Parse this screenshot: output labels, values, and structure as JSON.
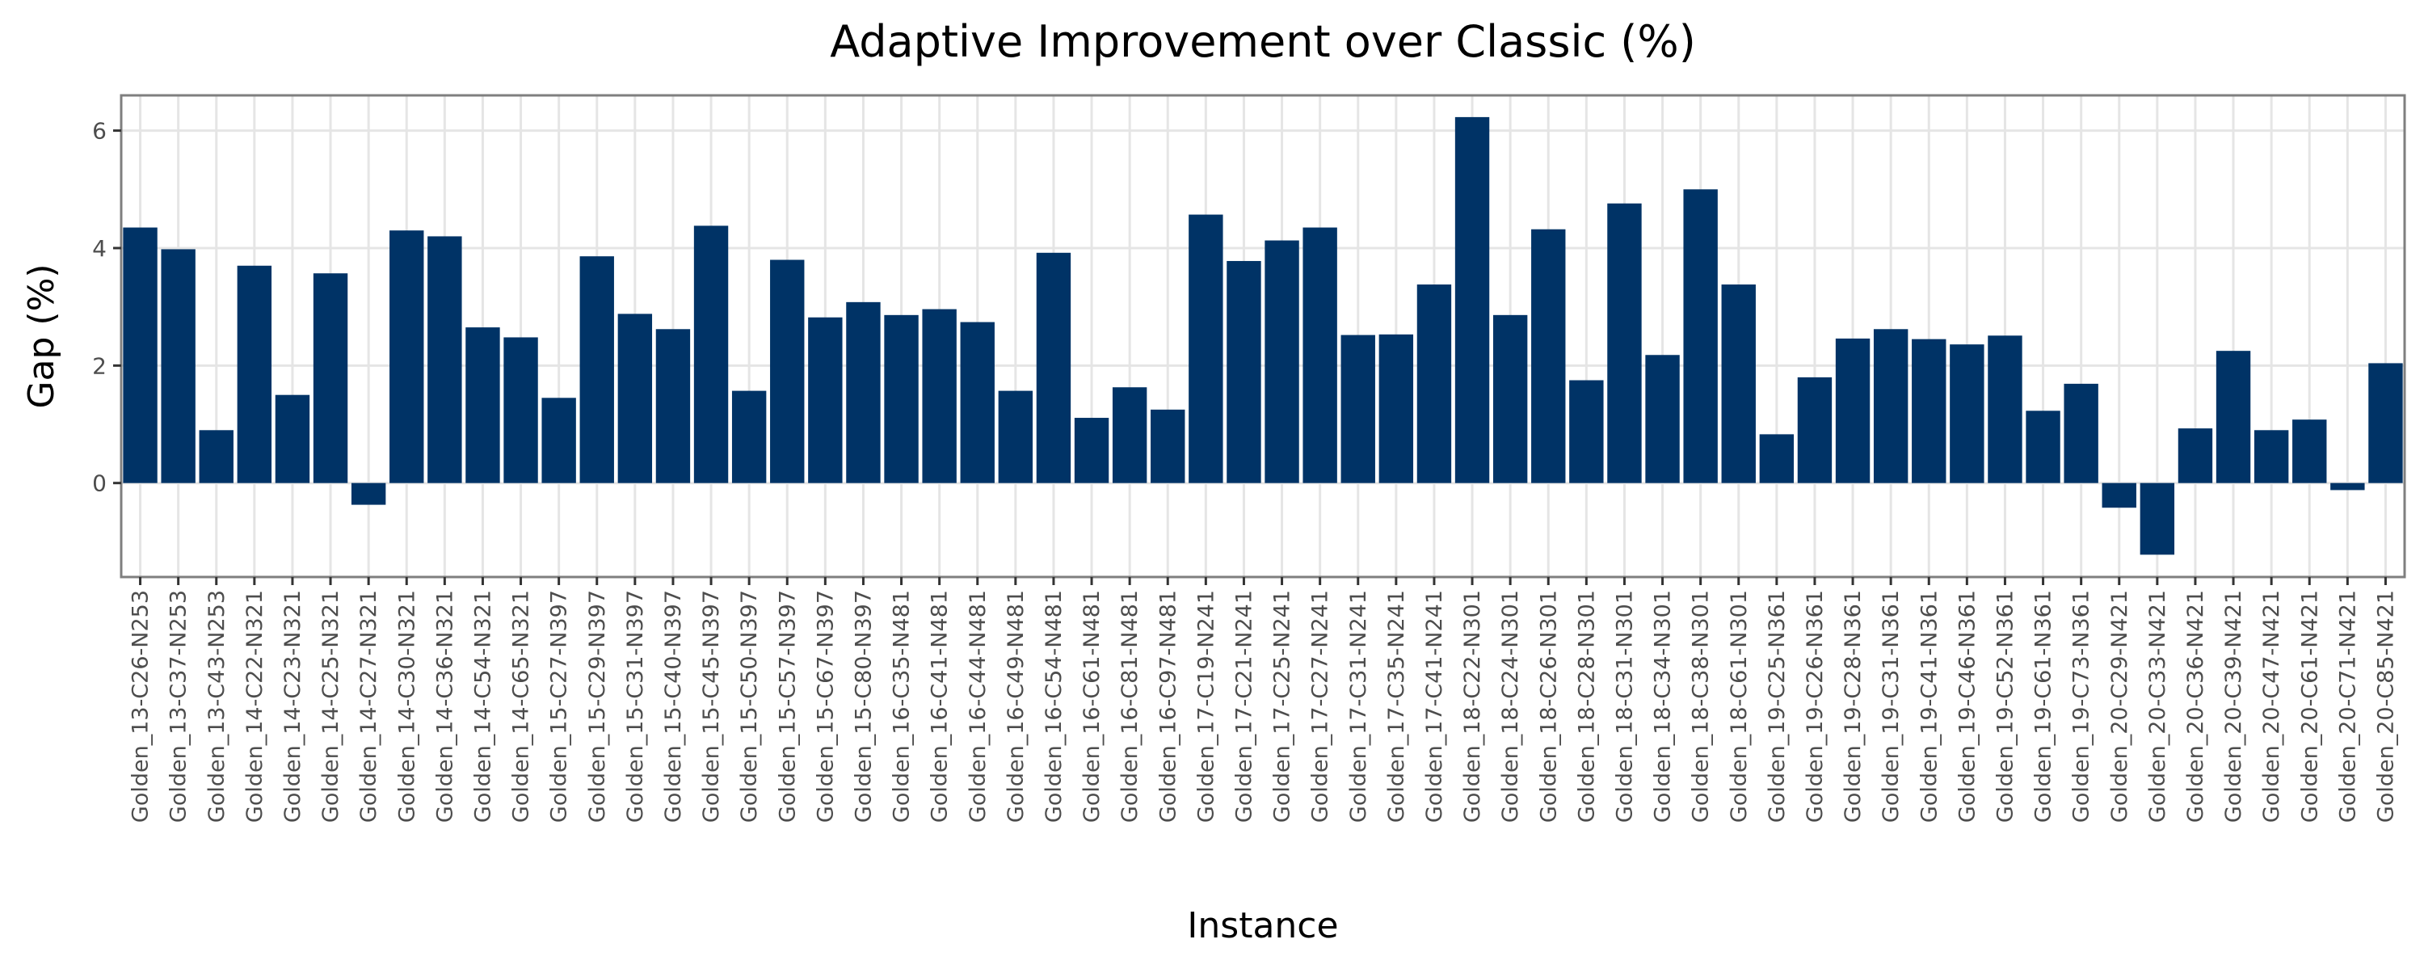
{
  "chart_data": {
    "type": "bar",
    "title": "Adaptive Improvement over Classic (%)",
    "xlabel": "Instance",
    "ylabel": "Gap (%)",
    "ylim": [
      -1.6,
      6.6
    ],
    "yticks": [
      0,
      2,
      4,
      6
    ],
    "grid": true,
    "bar_color": "#003366",
    "categories": [
      "Golden_13-C26-N253",
      "Golden_13-C37-N253",
      "Golden_13-C43-N253",
      "Golden_14-C22-N321",
      "Golden_14-C23-N321",
      "Golden_14-C25-N321",
      "Golden_14-C27-N321",
      "Golden_14-C30-N321",
      "Golden_14-C36-N321",
      "Golden_14-C54-N321",
      "Golden_14-C65-N321",
      "Golden_15-C27-N397",
      "Golden_15-C29-N397",
      "Golden_15-C31-N397",
      "Golden_15-C40-N397",
      "Golden_15-C45-N397",
      "Golden_15-C50-N397",
      "Golden_15-C57-N397",
      "Golden_15-C67-N397",
      "Golden_15-C80-N397",
      "Golden_16-C35-N481",
      "Golden_16-C41-N481",
      "Golden_16-C44-N481",
      "Golden_16-C49-N481",
      "Golden_16-C54-N481",
      "Golden_16-C61-N481",
      "Golden_16-C81-N481",
      "Golden_16-C97-N481",
      "Golden_17-C19-N241",
      "Golden_17-C21-N241",
      "Golden_17-C25-N241",
      "Golden_17-C27-N241",
      "Golden_17-C31-N241",
      "Golden_17-C35-N241",
      "Golden_17-C41-N241",
      "Golden_18-C22-N301",
      "Golden_18-C24-N301",
      "Golden_18-C26-N301",
      "Golden_18-C28-N301",
      "Golden_18-C31-N301",
      "Golden_18-C34-N301",
      "Golden_18-C38-N301",
      "Golden_18-C61-N301",
      "Golden_19-C25-N361",
      "Golden_19-C26-N361",
      "Golden_19-C28-N361",
      "Golden_19-C31-N361",
      "Golden_19-C41-N361",
      "Golden_19-C46-N361",
      "Golden_19-C52-N361",
      "Golden_19-C61-N361",
      "Golden_19-C73-N361",
      "Golden_20-C29-N421",
      "Golden_20-C33-N421",
      "Golden_20-C36-N421",
      "Golden_20-C39-N421",
      "Golden_20-C47-N421",
      "Golden_20-C61-N421",
      "Golden_20-C71-N421",
      "Golden_20-C85-N421"
    ],
    "values": [
      4.35,
      3.98,
      0.9,
      3.7,
      1.5,
      3.57,
      -0.37,
      4.3,
      4.2,
      2.65,
      2.48,
      1.45,
      3.86,
      2.88,
      2.62,
      4.38,
      1.57,
      3.8,
      2.82,
      3.08,
      2.86,
      2.96,
      2.74,
      1.57,
      3.92,
      1.11,
      1.63,
      1.25,
      4.57,
      3.78,
      4.13,
      4.35,
      2.52,
      2.53,
      3.38,
      6.23,
      2.86,
      4.32,
      1.75,
      4.76,
      2.18,
      5.0,
      3.38,
      0.83,
      1.8,
      2.46,
      2.62,
      2.45,
      2.36,
      2.51,
      1.23,
      1.69,
      -0.42,
      -1.22,
      0.93,
      2.25,
      0.9,
      1.08,
      -0.12,
      2.04
    ]
  }
}
